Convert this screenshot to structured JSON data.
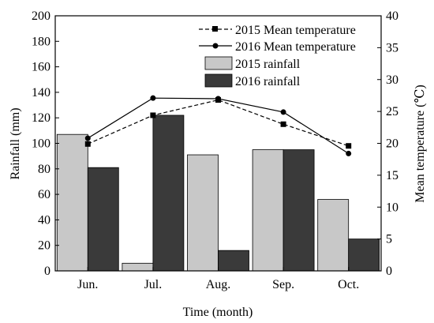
{
  "chart_data": {
    "type": "bar",
    "categories": [
      "Jun.",
      "Jul.",
      "Aug.",
      "Sep.",
      "Oct."
    ],
    "bar_series": [
      {
        "name": "2015 rainfall",
        "values": [
          107,
          6,
          91,
          95,
          56
        ],
        "color": "#c8c8c8"
      },
      {
        "name": "2016 rainfall",
        "values": [
          81,
          122,
          16,
          95,
          25
        ],
        "color": "#3a3a3a"
      }
    ],
    "line_series": [
      {
        "name": "2015 Mean temperature",
        "values": [
          19.9,
          24.4,
          26.8,
          23.0,
          19.6
        ],
        "style": "dashed",
        "marker": "square"
      },
      {
        "name": "2016 Mean temperature",
        "values": [
          20.8,
          27.1,
          27.0,
          24.9,
          18.4
        ],
        "style": "solid",
        "marker": "circle"
      }
    ],
    "xlabel": "Time (month)",
    "ylabel_left": "Rainfall (mm)",
    "ylabel_right": "Mean temperature (℃)",
    "ylim_left": [
      0,
      200
    ],
    "ylim_right": [
      0,
      40
    ],
    "left_ticks": [
      0,
      20,
      40,
      60,
      80,
      100,
      120,
      140,
      160,
      180,
      200
    ],
    "right_ticks": [
      0,
      5,
      10,
      15,
      20,
      25,
      30,
      35,
      40
    ],
    "legend_position": "top-right",
    "grid": false
  }
}
